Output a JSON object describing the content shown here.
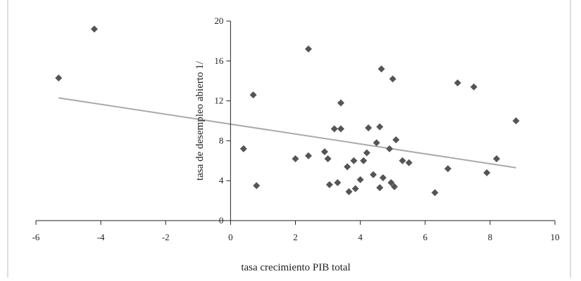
{
  "chart_data": {
    "type": "scatter",
    "title": "",
    "xlabel": "tasa crecimiento PIB total",
    "ylabel": "tasa de desempleo abierto 1/",
    "xlim": [
      -6,
      10
    ],
    "ylim": [
      0,
      20
    ],
    "xticks": [
      -6,
      -4,
      -2,
      0,
      2,
      4,
      6,
      8,
      10
    ],
    "yticks": [
      0,
      4,
      8,
      12,
      16,
      20
    ],
    "grid": false,
    "legend": "none",
    "colors": {
      "marker": "#555555",
      "trendline": "#aaaaaa",
      "axis": "#222222",
      "frame": "#bbbbbb"
    },
    "points": [
      {
        "x": -5.3,
        "y": 14.3
      },
      {
        "x": -4.2,
        "y": 19.2
      },
      {
        "x": 0.4,
        "y": 7.2
      },
      {
        "x": 0.7,
        "y": 12.6
      },
      {
        "x": 0.8,
        "y": 3.5
      },
      {
        "x": 2.0,
        "y": 6.2
      },
      {
        "x": 2.4,
        "y": 6.5
      },
      {
        "x": 2.4,
        "y": 17.2
      },
      {
        "x": 2.9,
        "y": 6.9
      },
      {
        "x": 3.0,
        "y": 6.2
      },
      {
        "x": 3.05,
        "y": 3.6
      },
      {
        "x": 3.2,
        "y": 9.2
      },
      {
        "x": 3.3,
        "y": 3.8
      },
      {
        "x": 3.4,
        "y": 11.8
      },
      {
        "x": 3.4,
        "y": 9.2
      },
      {
        "x": 3.6,
        "y": 5.4
      },
      {
        "x": 3.65,
        "y": 2.9
      },
      {
        "x": 3.8,
        "y": 6.0
      },
      {
        "x": 3.85,
        "y": 3.2
      },
      {
        "x": 4.0,
        "y": 4.1
      },
      {
        "x": 4.1,
        "y": 6.0
      },
      {
        "x": 4.2,
        "y": 6.8
      },
      {
        "x": 4.25,
        "y": 9.3
      },
      {
        "x": 4.4,
        "y": 4.6
      },
      {
        "x": 4.5,
        "y": 7.8
      },
      {
        "x": 4.6,
        "y": 9.4
      },
      {
        "x": 4.6,
        "y": 3.3
      },
      {
        "x": 4.65,
        "y": 15.2
      },
      {
        "x": 4.7,
        "y": 4.3
      },
      {
        "x": 4.9,
        "y": 7.2
      },
      {
        "x": 4.95,
        "y": 3.8
      },
      {
        "x": 5.0,
        "y": 14.2
      },
      {
        "x": 5.05,
        "y": 3.4
      },
      {
        "x": 5.1,
        "y": 8.1
      },
      {
        "x": 5.3,
        "y": 6.0
      },
      {
        "x": 5.5,
        "y": 5.8
      },
      {
        "x": 6.3,
        "y": 2.8
      },
      {
        "x": 6.7,
        "y": 5.2
      },
      {
        "x": 7.0,
        "y": 13.8
      },
      {
        "x": 7.5,
        "y": 13.4
      },
      {
        "x": 7.9,
        "y": 4.8
      },
      {
        "x": 8.2,
        "y": 6.2
      },
      {
        "x": 8.8,
        "y": 10.0
      }
    ],
    "trendline": {
      "x": [
        -5.3,
        8.8
      ],
      "y": [
        12.3,
        5.3
      ]
    }
  }
}
